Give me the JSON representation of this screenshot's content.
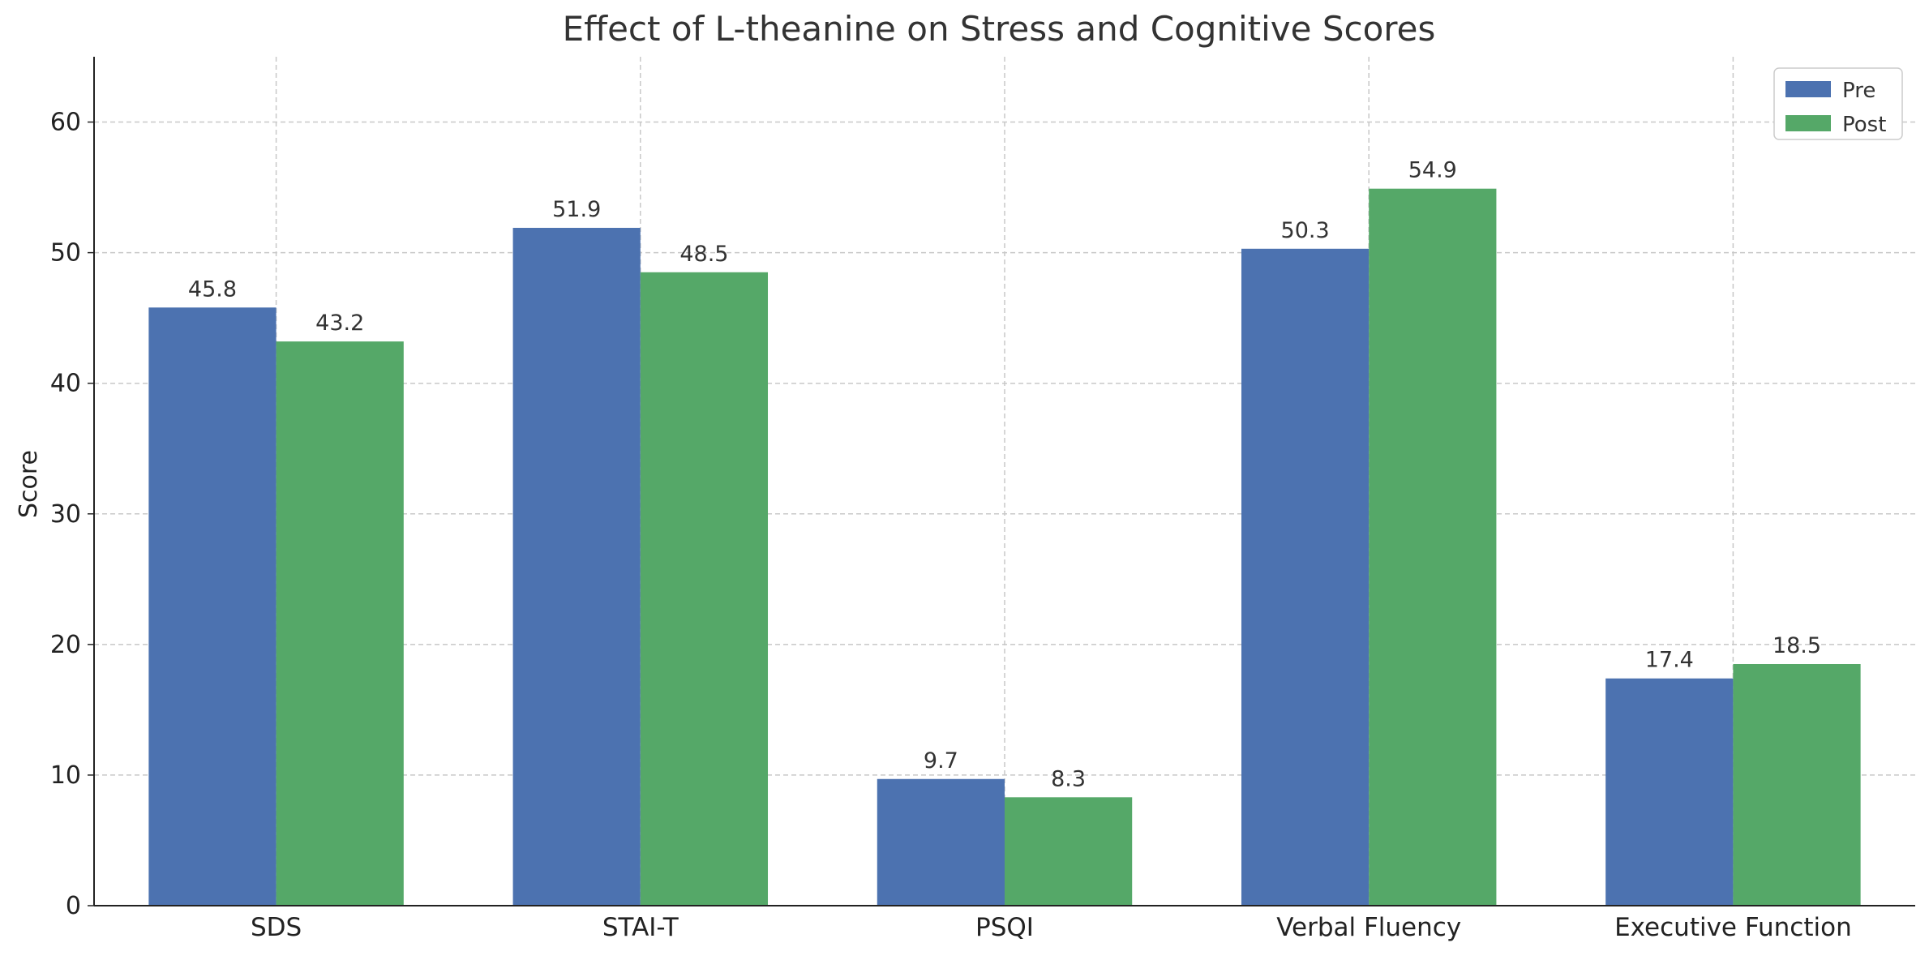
{
  "chart_data": {
    "type": "bar",
    "title": "Effect of L-theanine on Stress and Cognitive Scores",
    "xlabel": "",
    "ylabel": "Score",
    "categories": [
      "SDS",
      "STAI-T",
      "PSQI",
      "Verbal Fluency",
      "Executive Function"
    ],
    "series": [
      {
        "name": "Pre",
        "color": "#4c72b0",
        "values": [
          45.8,
          51.9,
          9.7,
          50.3,
          17.4
        ]
      },
      {
        "name": "Post",
        "color": "#55a868",
        "values": [
          43.2,
          48.5,
          8.3,
          54.9,
          18.5
        ]
      }
    ],
    "ylim": [
      0,
      65
    ],
    "yticks": [
      0,
      10,
      20,
      30,
      40,
      50,
      60
    ],
    "grid": true,
    "legend_position": "top-right",
    "value_labels": true
  }
}
